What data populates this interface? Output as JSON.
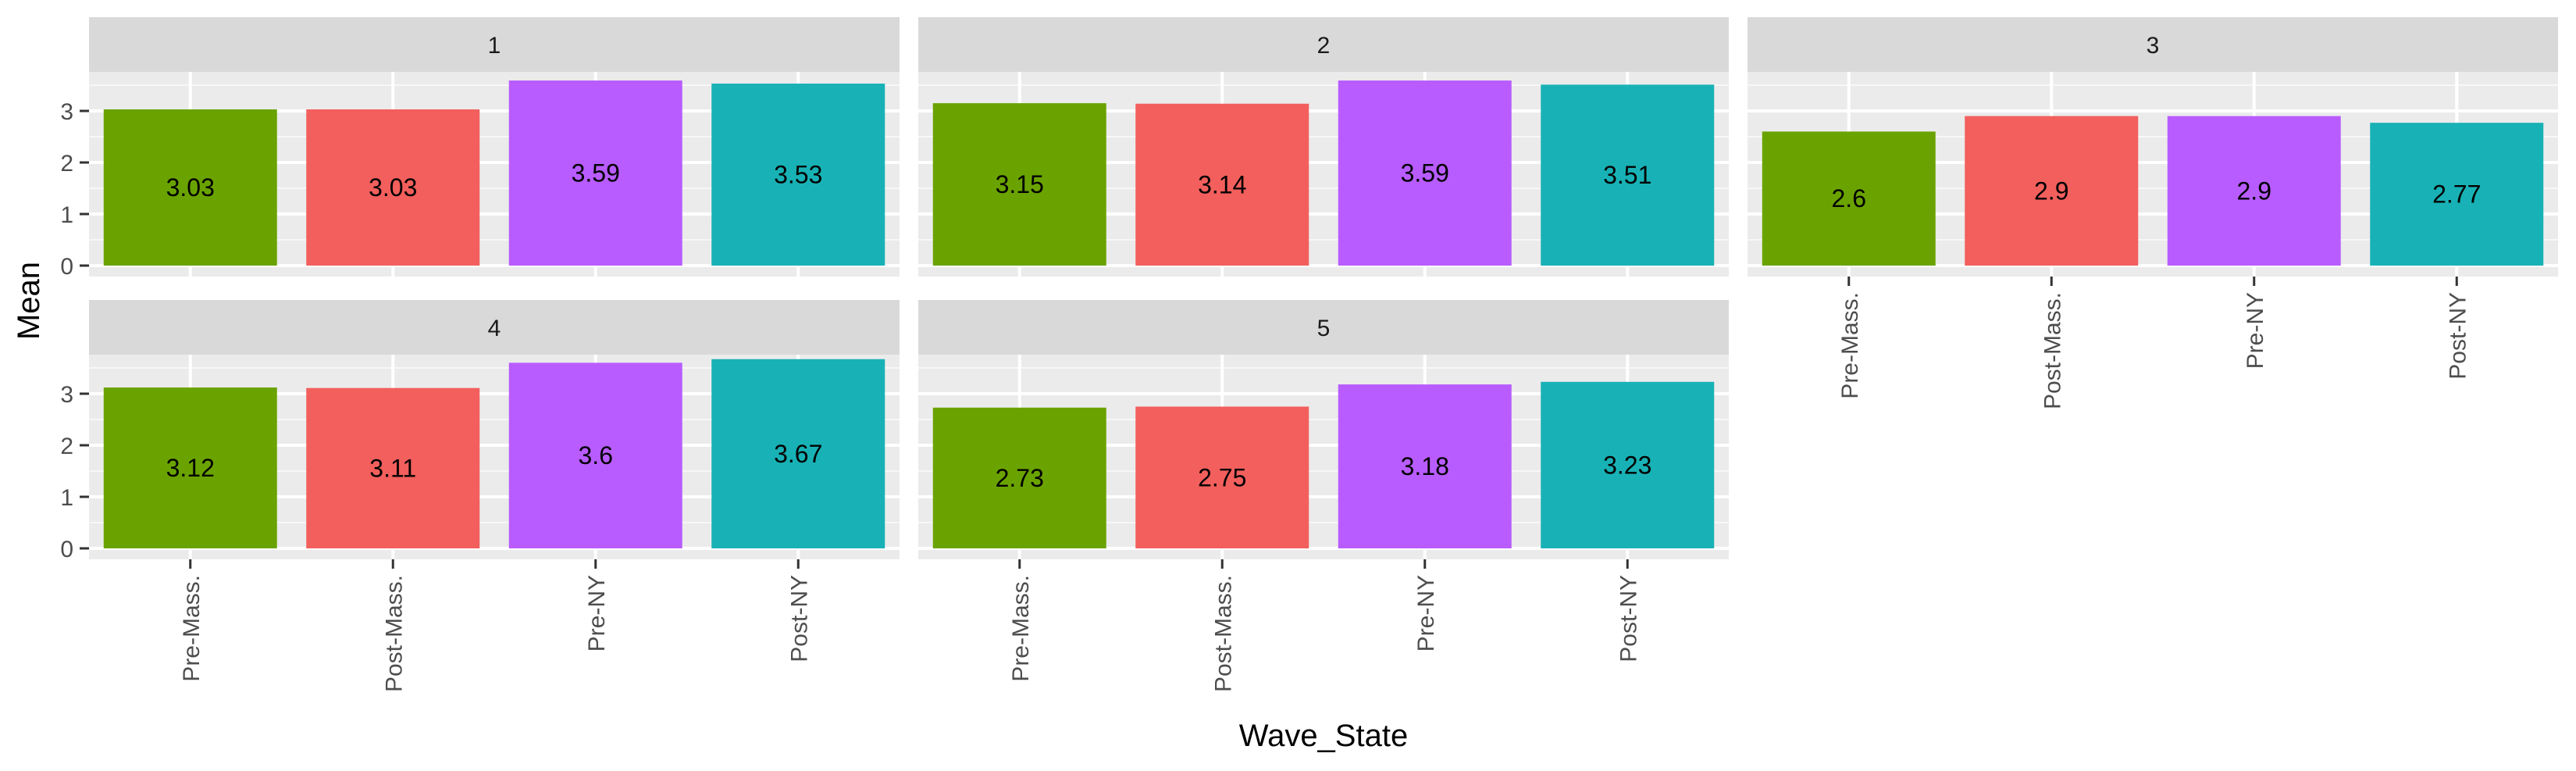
{
  "chart_data": {
    "type": "bar",
    "xlabel": "Wave_State",
    "ylabel": "Mean",
    "categories": [
      "Pre-Mass.",
      "Post-Mass.",
      "Pre-NY",
      "Post-NY"
    ],
    "colors": [
      "#6aa300",
      "#f25f5c",
      "#b85cff",
      "#18b2b6"
    ],
    "ylim": [
      0,
      4
    ],
    "yticks": [
      "0",
      "1",
      "2",
      "3"
    ],
    "grid": true,
    "legend": "none",
    "panels": [
      {
        "title": "1",
        "values": [
          3.03,
          3.03,
          3.59,
          3.53
        ],
        "labels": [
          "3.03",
          "3.03",
          "3.59",
          "3.53"
        ]
      },
      {
        "title": "2",
        "values": [
          3.15,
          3.14,
          3.59,
          3.51
        ],
        "labels": [
          "3.15",
          "3.14",
          "3.59",
          "3.51"
        ]
      },
      {
        "title": "3",
        "values": [
          2.6,
          2.9,
          2.9,
          2.77
        ],
        "labels": [
          "2.6",
          "2.9",
          "2.9",
          "2.77"
        ]
      },
      {
        "title": "4",
        "values": [
          3.12,
          3.11,
          3.6,
          3.67
        ],
        "labels": [
          "3.12",
          "3.11",
          "3.6",
          "3.67"
        ]
      },
      {
        "title": "5",
        "values": [
          2.73,
          2.75,
          3.18,
          3.23
        ],
        "labels": [
          "2.73",
          "2.75",
          "3.18",
          "3.23"
        ]
      }
    ]
  }
}
